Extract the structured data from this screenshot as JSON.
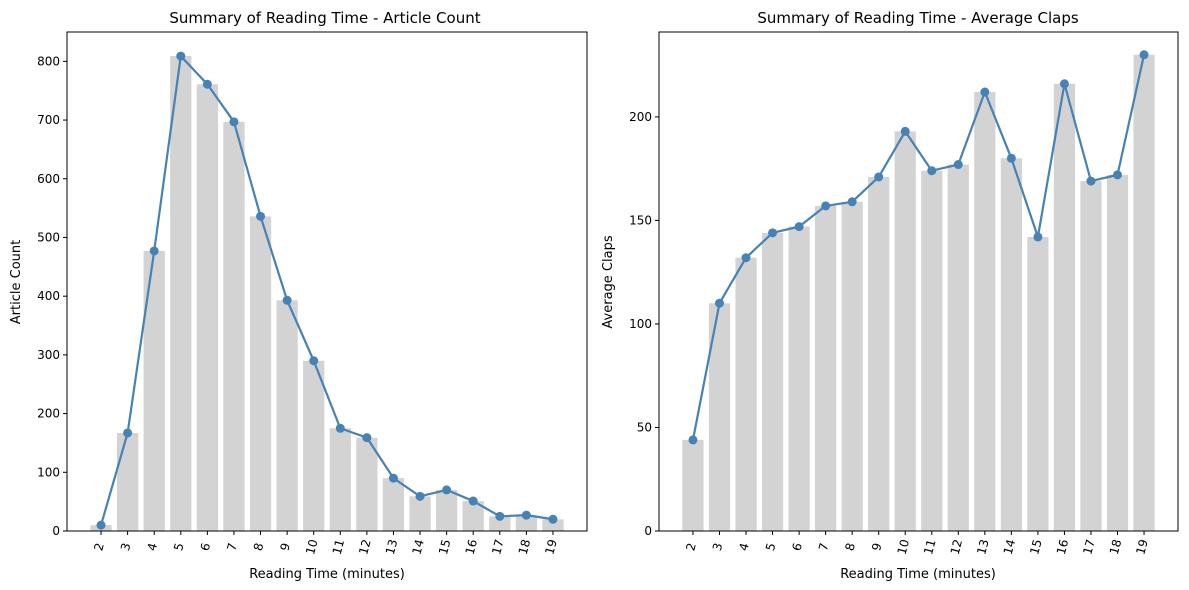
{
  "colors": {
    "bar": "#d3d3d3",
    "line": "#4682b4",
    "axis": "#000000"
  },
  "chart_data": [
    {
      "type": "bar",
      "overlay": "line-with-markers",
      "title": "Summary of Reading Time - Article Count",
      "xlabel": "Reading Time (minutes)",
      "ylabel": "Article Count",
      "categories": [
        "2",
        "3",
        "4",
        "5",
        "6",
        "7",
        "8",
        "9",
        "10",
        "11",
        "12",
        "13",
        "14",
        "15",
        "16",
        "17",
        "18",
        "19"
      ],
      "values": [
        10,
        167,
        477,
        809,
        761,
        697,
        536,
        393,
        290,
        175,
        159,
        90,
        59,
        70,
        51,
        25,
        27,
        20
      ],
      "ylim": [
        0,
        850
      ],
      "yticks": [
        0,
        100,
        200,
        300,
        400,
        500,
        600,
        700,
        800
      ],
      "grid": false,
      "legend": "none"
    },
    {
      "type": "bar",
      "overlay": "line-with-markers",
      "title": "Summary of Reading Time - Average Claps",
      "xlabel": "Reading Time (minutes)",
      "ylabel": "Average Claps",
      "categories": [
        "2",
        "3",
        "4",
        "5",
        "6",
        "7",
        "8",
        "9",
        "10",
        "11",
        "12",
        "13",
        "14",
        "15",
        "16",
        "17",
        "18",
        "19"
      ],
      "values": [
        44,
        110,
        132,
        144,
        147,
        157,
        159,
        171,
        193,
        174,
        177,
        212,
        180,
        142,
        216,
        169,
        172,
        230
      ],
      "ylim": [
        0,
        241
      ],
      "yticks": [
        0,
        50,
        100,
        150,
        200
      ],
      "grid": false,
      "legend": "none"
    }
  ]
}
